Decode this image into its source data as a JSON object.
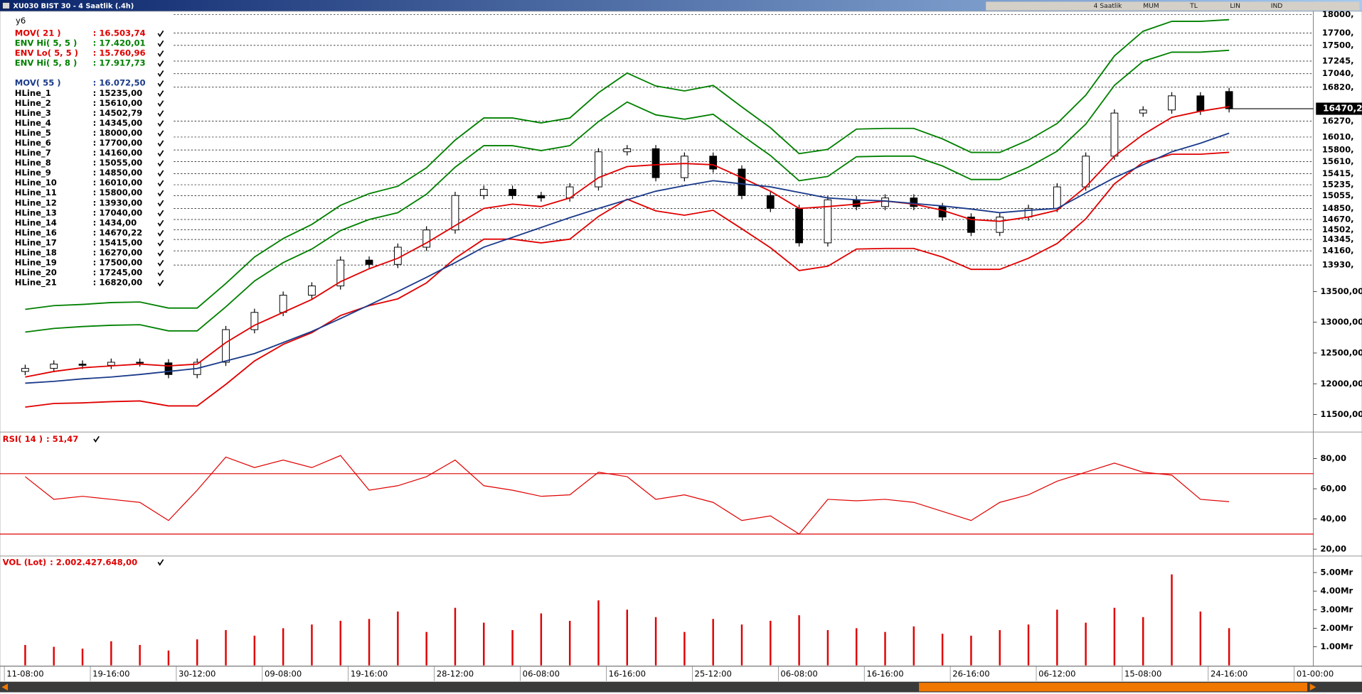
{
  "window": {
    "title": "XU030 BIST 30 - 4 Saatlik (.4h)",
    "toolbar": [
      "4 Saatlik",
      "MUM",
      "TL",
      "LIN",
      "IND"
    ]
  },
  "chart_data": [
    {
      "type": "candlestick",
      "label": "y6",
      "categories": [
        "11-08:00",
        null,
        null,
        "19-16:00",
        null,
        null,
        "30-12:00",
        null,
        null,
        "09-08:00",
        null,
        null,
        "19-16:00",
        null,
        null,
        "28-12:00",
        null,
        null,
        "06-08:00",
        null,
        null,
        "16-16:00",
        null,
        null,
        "25-12:00",
        null,
        null,
        "06-08:00",
        null,
        null,
        "16-16:00",
        null,
        null,
        "26-16:00",
        null,
        null,
        "06-12:00",
        null,
        null,
        "15-08:00",
        null,
        null,
        "24-16:00",
        null,
        null,
        "01-00:00"
      ],
      "open": [
        12200,
        12250,
        12320,
        12300,
        12350,
        12340,
        12150,
        12350,
        12880,
        13160,
        13440,
        13590,
        14010,
        13940,
        14220,
        14500,
        15060,
        15160,
        15060,
        15020,
        15200,
        15770,
        15820,
        15350,
        15700,
        15490,
        15060,
        14850,
        14290,
        14990,
        14880,
        15020,
        14880,
        14710,
        14460,
        14710,
        14850,
        15200,
        15700,
        16400,
        16450,
        16680,
        16750,
        null,
        null,
        null
      ],
      "high": [
        12310,
        12380,
        12380,
        12410,
        12410,
        12400,
        12410,
        12940,
        13220,
        13500,
        13650,
        14070,
        14070,
        14280,
        14560,
        15120,
        15220,
        15220,
        15120,
        15260,
        15830,
        15880,
        15880,
        15760,
        15760,
        15550,
        15120,
        14910,
        15050,
        15050,
        15080,
        15080,
        14940,
        14770,
        14770,
        14910,
        15260,
        15760,
        16460,
        16510,
        16740,
        16740,
        16810,
        null,
        null,
        null
      ],
      "low": [
        12140,
        12190,
        12240,
        12240,
        12280,
        12090,
        12090,
        12290,
        12820,
        13100,
        13380,
        13530,
        13880,
        13880,
        14160,
        14440,
        15000,
        15000,
        14960,
        14960,
        15140,
        15710,
        15290,
        15290,
        15430,
        15000,
        14790,
        14230,
        14230,
        14820,
        14820,
        14820,
        14650,
        14400,
        14400,
        14650,
        14790,
        15140,
        15640,
        16340,
        16390,
        16370,
        16410,
        null,
        null,
        null
      ],
      "close": [
        12250,
        12320,
        12300,
        12350,
        12340,
        12150,
        12350,
        12880,
        13160,
        13440,
        13590,
        14010,
        13940,
        14220,
        14500,
        15060,
        15160,
        15060,
        15020,
        15200,
        15770,
        15820,
        15350,
        15700,
        15490,
        15060,
        14850,
        14290,
        14990,
        14880,
        15020,
        14880,
        14710,
        14460,
        14710,
        14850,
        15200,
        15700,
        16400,
        16450,
        16680,
        16430,
        16470.2,
        null,
        null,
        null
      ],
      "up_color": "#ffffff",
      "down_color": "#000000",
      "series": [
        {
          "name": "MOV( 21 )",
          "color": "#e00000",
          "last": {
            "value": 16503.74,
            "label": ": 16.503,74"
          },
          "values": [
            12110,
            12200,
            12260,
            12290,
            12320,
            12290,
            12320,
            12670,
            12950,
            13160,
            13370,
            13660,
            13870,
            14040,
            14290,
            14570,
            14850,
            14920,
            14880,
            15020,
            15350,
            15530,
            15560,
            15580,
            15560,
            15350,
            15130,
            14850,
            14880,
            14920,
            14970,
            14920,
            14820,
            14670,
            14640,
            14710,
            14820,
            15200,
            15700,
            16050,
            16330,
            16430,
            16503.74,
            null,
            null,
            null
          ]
        },
        {
          "name": "ENV Hi( 5, 5 )",
          "color": "#008000",
          "last": {
            "value": 17420.01,
            "label": ": 17.420,01"
          },
          "values": [
            12840,
            12900,
            12930,
            12950,
            12960,
            12860,
            12860,
            13250,
            13670,
            13970,
            14190,
            14490,
            14670,
            14780,
            15080,
            15520,
            15870,
            15870,
            15790,
            15870,
            16260,
            16580,
            16370,
            16300,
            16380,
            16040,
            15710,
            15300,
            15370,
            15690,
            15700,
            15700,
            15540,
            15320,
            15320,
            15520,
            15780,
            16220,
            16850,
            17240,
            17390,
            17390,
            17420.01,
            null,
            null,
            null
          ]
        },
        {
          "name": "ENV Lo( 5, 5 )",
          "color": "#e00000",
          "last": {
            "value": 15760.96,
            "label": ": 15.760,96"
          },
          "values": [
            11620,
            11680,
            11690,
            11710,
            11720,
            11640,
            11640,
            11990,
            12370,
            12640,
            12830,
            13110,
            13270,
            13380,
            13640,
            14040,
            14350,
            14350,
            14290,
            14350,
            14720,
            15000,
            14810,
            14740,
            14820,
            14520,
            14210,
            13840,
            13910,
            14190,
            14200,
            14200,
            14060,
            13860,
            13860,
            14040,
            14280,
            14680,
            15250,
            15600,
            15730,
            15730,
            15760.96,
            null,
            null,
            null
          ]
        },
        {
          "name": "ENV Hi( 5, 8 )",
          "color": "#008000",
          "last": {
            "value": 17917.73,
            "label": ": 17.917,73"
          },
          "values": [
            13210,
            13270,
            13290,
            13320,
            13330,
            13230,
            13230,
            13630,
            14060,
            14360,
            14590,
            14900,
            15090,
            15210,
            15510,
            15960,
            16320,
            16320,
            16240,
            16320,
            16730,
            17050,
            16840,
            16760,
            16850,
            16500,
            16160,
            15740,
            15810,
            16140,
            16150,
            16150,
            15980,
            15760,
            15760,
            15960,
            16230,
            16690,
            17330,
            17730,
            17890,
            17890,
            17917.73,
            null,
            null,
            null
          ]
        },
        {
          "name": "MOV( 55 )",
          "color": "#1a3a8a",
          "last": {
            "value": 16072.5,
            "label": ": 16.072,50"
          },
          "values": [
            12010,
            12040,
            12080,
            12110,
            12150,
            12200,
            12250,
            12370,
            12490,
            12670,
            12850,
            13060,
            13280,
            13500,
            13730,
            13970,
            14220,
            14380,
            14540,
            14700,
            14850,
            14990,
            15130,
            15220,
            15300,
            15250,
            15200,
            15110,
            15020,
            14990,
            14970,
            14930,
            14890,
            14840,
            14780,
            14820,
            14850,
            15100,
            15350,
            15560,
            15770,
            15910,
            16072.5,
            null,
            null,
            null
          ]
        }
      ],
      "hlines": [
        {
          "name": "HLine_1",
          "value": 15235,
          "label": ": 15235,00",
          "axis_label": "15235,"
        },
        {
          "name": "HLine_2",
          "value": 15610,
          "label": ": 15610,00",
          "axis_label": "15610,"
        },
        {
          "name": "HLine_3",
          "value": 14502.79,
          "label": ": 14502,79",
          "axis_label": "14502,"
        },
        {
          "name": "HLine_4",
          "value": 14345,
          "label": ": 14345,00",
          "axis_label": "14345,"
        },
        {
          "name": "HLine_5",
          "value": 18000,
          "label": ": 18000,00",
          "axis_label": "18000,"
        },
        {
          "name": "HLine_6",
          "value": 17700,
          "label": ": 17700,00",
          "axis_label": "17700,"
        },
        {
          "name": "HLine_7",
          "value": 14160,
          "label": ": 14160,00",
          "axis_label": "14160,"
        },
        {
          "name": "HLine_8",
          "value": 15055,
          "label": ": 15055,00",
          "axis_label": "15055,"
        },
        {
          "name": "HLine_9",
          "value": 14850,
          "label": ": 14850,00",
          "axis_label": "14850,"
        },
        {
          "name": "HLine_10",
          "value": 16010,
          "label": ": 16010,00",
          "axis_label": "16010,"
        },
        {
          "name": "HLine_11",
          "value": 15800,
          "label": ": 15800,00",
          "axis_label": "15800,"
        },
        {
          "name": "HLine_12",
          "value": 13930,
          "label": ": 13930,00",
          "axis_label": "13930,"
        },
        {
          "name": "HLine_13",
          "value": 17040,
          "label": ": 17040,00",
          "axis_label": "17040,"
        },
        {
          "name": "HLine_14",
          "value": 1434,
          "label": ": 1434,00"
        },
        {
          "name": "HLine_16",
          "value": 14670.22,
          "label": ": 14670,22",
          "axis_label": "14670,"
        },
        {
          "name": "HLine_17",
          "value": 15415,
          "label": ": 15415,00",
          "axis_label": "15415,"
        },
        {
          "name": "HLine_18",
          "value": 16270,
          "label": ": 16270,00",
          "axis_label": "16270,"
        },
        {
          "name": "HLine_19",
          "value": 17500,
          "label": ": 17500,00",
          "axis_label": "17500,"
        },
        {
          "name": "HLine_20",
          "value": 17245,
          "label": ": 17245,00",
          "axis_label": "17245,"
        },
        {
          "name": "HLine_21",
          "value": 16820,
          "label": ": 16820,00",
          "axis_label": "16820,"
        }
      ],
      "last_price": {
        "value": 16470.2,
        "label": "16470,2"
      },
      "ylim": [
        11230,
        18040
      ],
      "yticks": [
        {
          "value": 13500,
          "label": "13500,00"
        },
        {
          "value": 13000,
          "label": "13000,00"
        },
        {
          "value": 12500,
          "label": "12500,00"
        },
        {
          "value": 12000,
          "label": "12000,00"
        },
        {
          "value": 11500,
          "label": "11500,00"
        }
      ]
    },
    {
      "type": "line",
      "title": "RSI( 14 )",
      "last": {
        "value": 51.47,
        "label": ": 51,47"
      },
      "color": "#e00000",
      "values": [
        68,
        53,
        55,
        53,
        51,
        39,
        59,
        81,
        74,
        79,
        74,
        82,
        59,
        62,
        68,
        79,
        62,
        59,
        55,
        56,
        71,
        68,
        53,
        56,
        51,
        39,
        42,
        30,
        53,
        52,
        53,
        51,
        45,
        39,
        51,
        56,
        65,
        71,
        77,
        71,
        69,
        53,
        51.47,
        null,
        null,
        null
      ],
      "hlines": [
        70,
        30
      ],
      "ylim": [
        16,
        97
      ],
      "yticks": [
        {
          "value": 80,
          "label": "80,00"
        },
        {
          "value": 60,
          "label": "60,00"
        },
        {
          "value": 40,
          "label": "40,00"
        },
        {
          "value": 20,
          "label": "20,00"
        }
      ]
    },
    {
      "type": "bar",
      "title": "VOL (Lot)",
      "last": {
        "value": 2002427648,
        "label": ": 2.002.427.648,00"
      },
      "color": "#e00000",
      "values": [
        1100000000,
        1000000000,
        900000000,
        1300000000,
        1100000000,
        800000000,
        1400000000,
        1900000000,
        1600000000,
        2000000000,
        2200000000,
        2400000000,
        2500000000,
        2900000000,
        1800000000,
        3100000000,
        2300000000,
        1900000000,
        2800000000,
        2400000000,
        3500000000,
        3000000000,
        2600000000,
        1800000000,
        2500000000,
        2200000000,
        2400000000,
        2700000000,
        1900000000,
        2000000000,
        1800000000,
        2100000000,
        1700000000,
        1600000000,
        1900000000,
        2200000000,
        3000000000,
        2300000000,
        3100000000,
        2600000000,
        4900000000,
        2900000000,
        2002427648,
        null,
        null,
        null
      ],
      "ylim": [
        0,
        5840000000
      ],
      "yticks": [
        {
          "value": 5000000000,
          "label": "5.00Mr"
        },
        {
          "value": 4000000000,
          "label": "4.00Mr"
        },
        {
          "value": 3000000000,
          "label": "3.00Mr"
        },
        {
          "value": 2000000000,
          "label": "2.00Mr"
        },
        {
          "value": 1000000000,
          "label": "1.00Mr"
        }
      ]
    }
  ]
}
